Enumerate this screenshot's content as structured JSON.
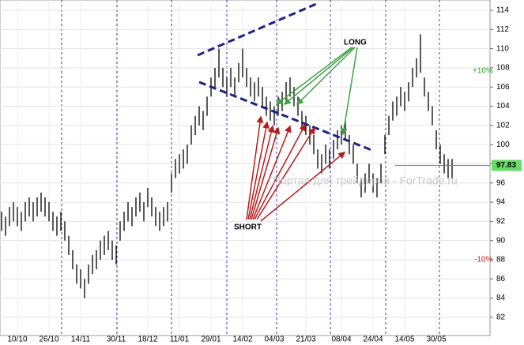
{
  "chart_data": {
    "type": "range-bar",
    "high": [
      93,
      92.5,
      93.5,
      94,
      93.5,
      93,
      94,
      94.5,
      94,
      94.5,
      95,
      94.5,
      94,
      93,
      92.5,
      93,
      92,
      90.5,
      89,
      87.5,
      87,
      86,
      87.5,
      88.5,
      89,
      90,
      90.5,
      91,
      90,
      89.5,
      92,
      93,
      94,
      93.5,
      94.5,
      95,
      94,
      95.5,
      94.5,
      93.5,
      93,
      93.5,
      94,
      97,
      98.5,
      99,
      99.5,
      100,
      102,
      103,
      104,
      103.5,
      105,
      107,
      108,
      110,
      108,
      107,
      108,
      107,
      108.5,
      110,
      108,
      107,
      106.5,
      107,
      106,
      105,
      104.5,
      104,
      105,
      105.5,
      106.5,
      107,
      106,
      105,
      103.5,
      103,
      102,
      101,
      99.5,
      99,
      100,
      99.5,
      100.5,
      101.5,
      102,
      102.5,
      101,
      100,
      98,
      96.5,
      97,
      98,
      97,
      96.5,
      98,
      101,
      103,
      104.5,
      105,
      106,
      105.5,
      106.5,
      108,
      109,
      111.5,
      107,
      105.5,
      104,
      101.5,
      100,
      99,
      98.5,
      98.5
    ],
    "low": [
      91,
      90.5,
      91.5,
      92,
      91.5,
      91,
      92,
      92.5,
      92,
      92.5,
      93,
      92.5,
      92,
      91,
      90.5,
      91,
      90,
      88.5,
      87,
      85.5,
      85,
      84,
      85.5,
      86.5,
      87,
      88,
      88.5,
      89,
      88,
      87.5,
      90,
      91,
      92,
      91.5,
      92.5,
      93,
      92,
      93.5,
      92.5,
      91.5,
      91,
      91.5,
      92,
      95,
      96.5,
      97,
      97.5,
      98,
      100,
      101,
      102,
      101.5,
      103,
      105,
      106,
      107,
      106,
      105,
      106,
      105,
      106.5,
      107,
      106,
      105,
      104.5,
      105,
      104,
      103,
      102.5,
      102,
      103,
      103.5,
      104.5,
      105,
      104,
      103,
      101.5,
      101,
      100,
      99,
      97.5,
      97,
      98,
      97.5,
      98.5,
      99.5,
      100,
      100.5,
      99,
      98,
      96,
      94.5,
      95,
      96,
      95,
      94.5,
      96,
      99,
      101,
      102.5,
      103,
      104,
      103.5,
      104.5,
      106,
      107,
      107.5,
      105,
      103.5,
      102,
      99.5,
      98,
      97,
      96.5,
      96.5
    ],
    "xticks": [
      {
        "value": 4,
        "label": "10/10"
      },
      {
        "value": 12,
        "label": "26/10"
      },
      {
        "value": 20,
        "label": "14/11"
      },
      {
        "value": 29,
        "label": "30/11"
      },
      {
        "value": 37,
        "label": "18/12"
      },
      {
        "value": 45,
        "label": "11/01"
      },
      {
        "value": 53,
        "label": "29/01"
      },
      {
        "value": 61,
        "label": "14/02"
      },
      {
        "value": 69,
        "label": "04/03"
      },
      {
        "value": 77,
        "label": "21/03"
      },
      {
        "value": 86,
        "label": "08/04"
      },
      {
        "value": 94,
        "label": "24/04"
      },
      {
        "value": 102,
        "label": "14/05"
      },
      {
        "value": 110,
        "label": "30/05"
      }
    ],
    "ylim": [
      80.1,
      115.07
    ],
    "yticks": [
      82,
      84,
      86,
      88,
      90,
      92,
      94,
      96,
      98,
      100,
      102,
      104,
      106,
      108,
      110,
      112,
      114
    ],
    "grid": true,
    "color": "#000000",
    "last_price": 97.83,
    "annotations": {
      "up": "+10%",
      "down": "-10%",
      "long": "LONG",
      "short": "SHORT",
      "watermark": "Портал для трейдеров - ForTrade.ru"
    }
  }
}
